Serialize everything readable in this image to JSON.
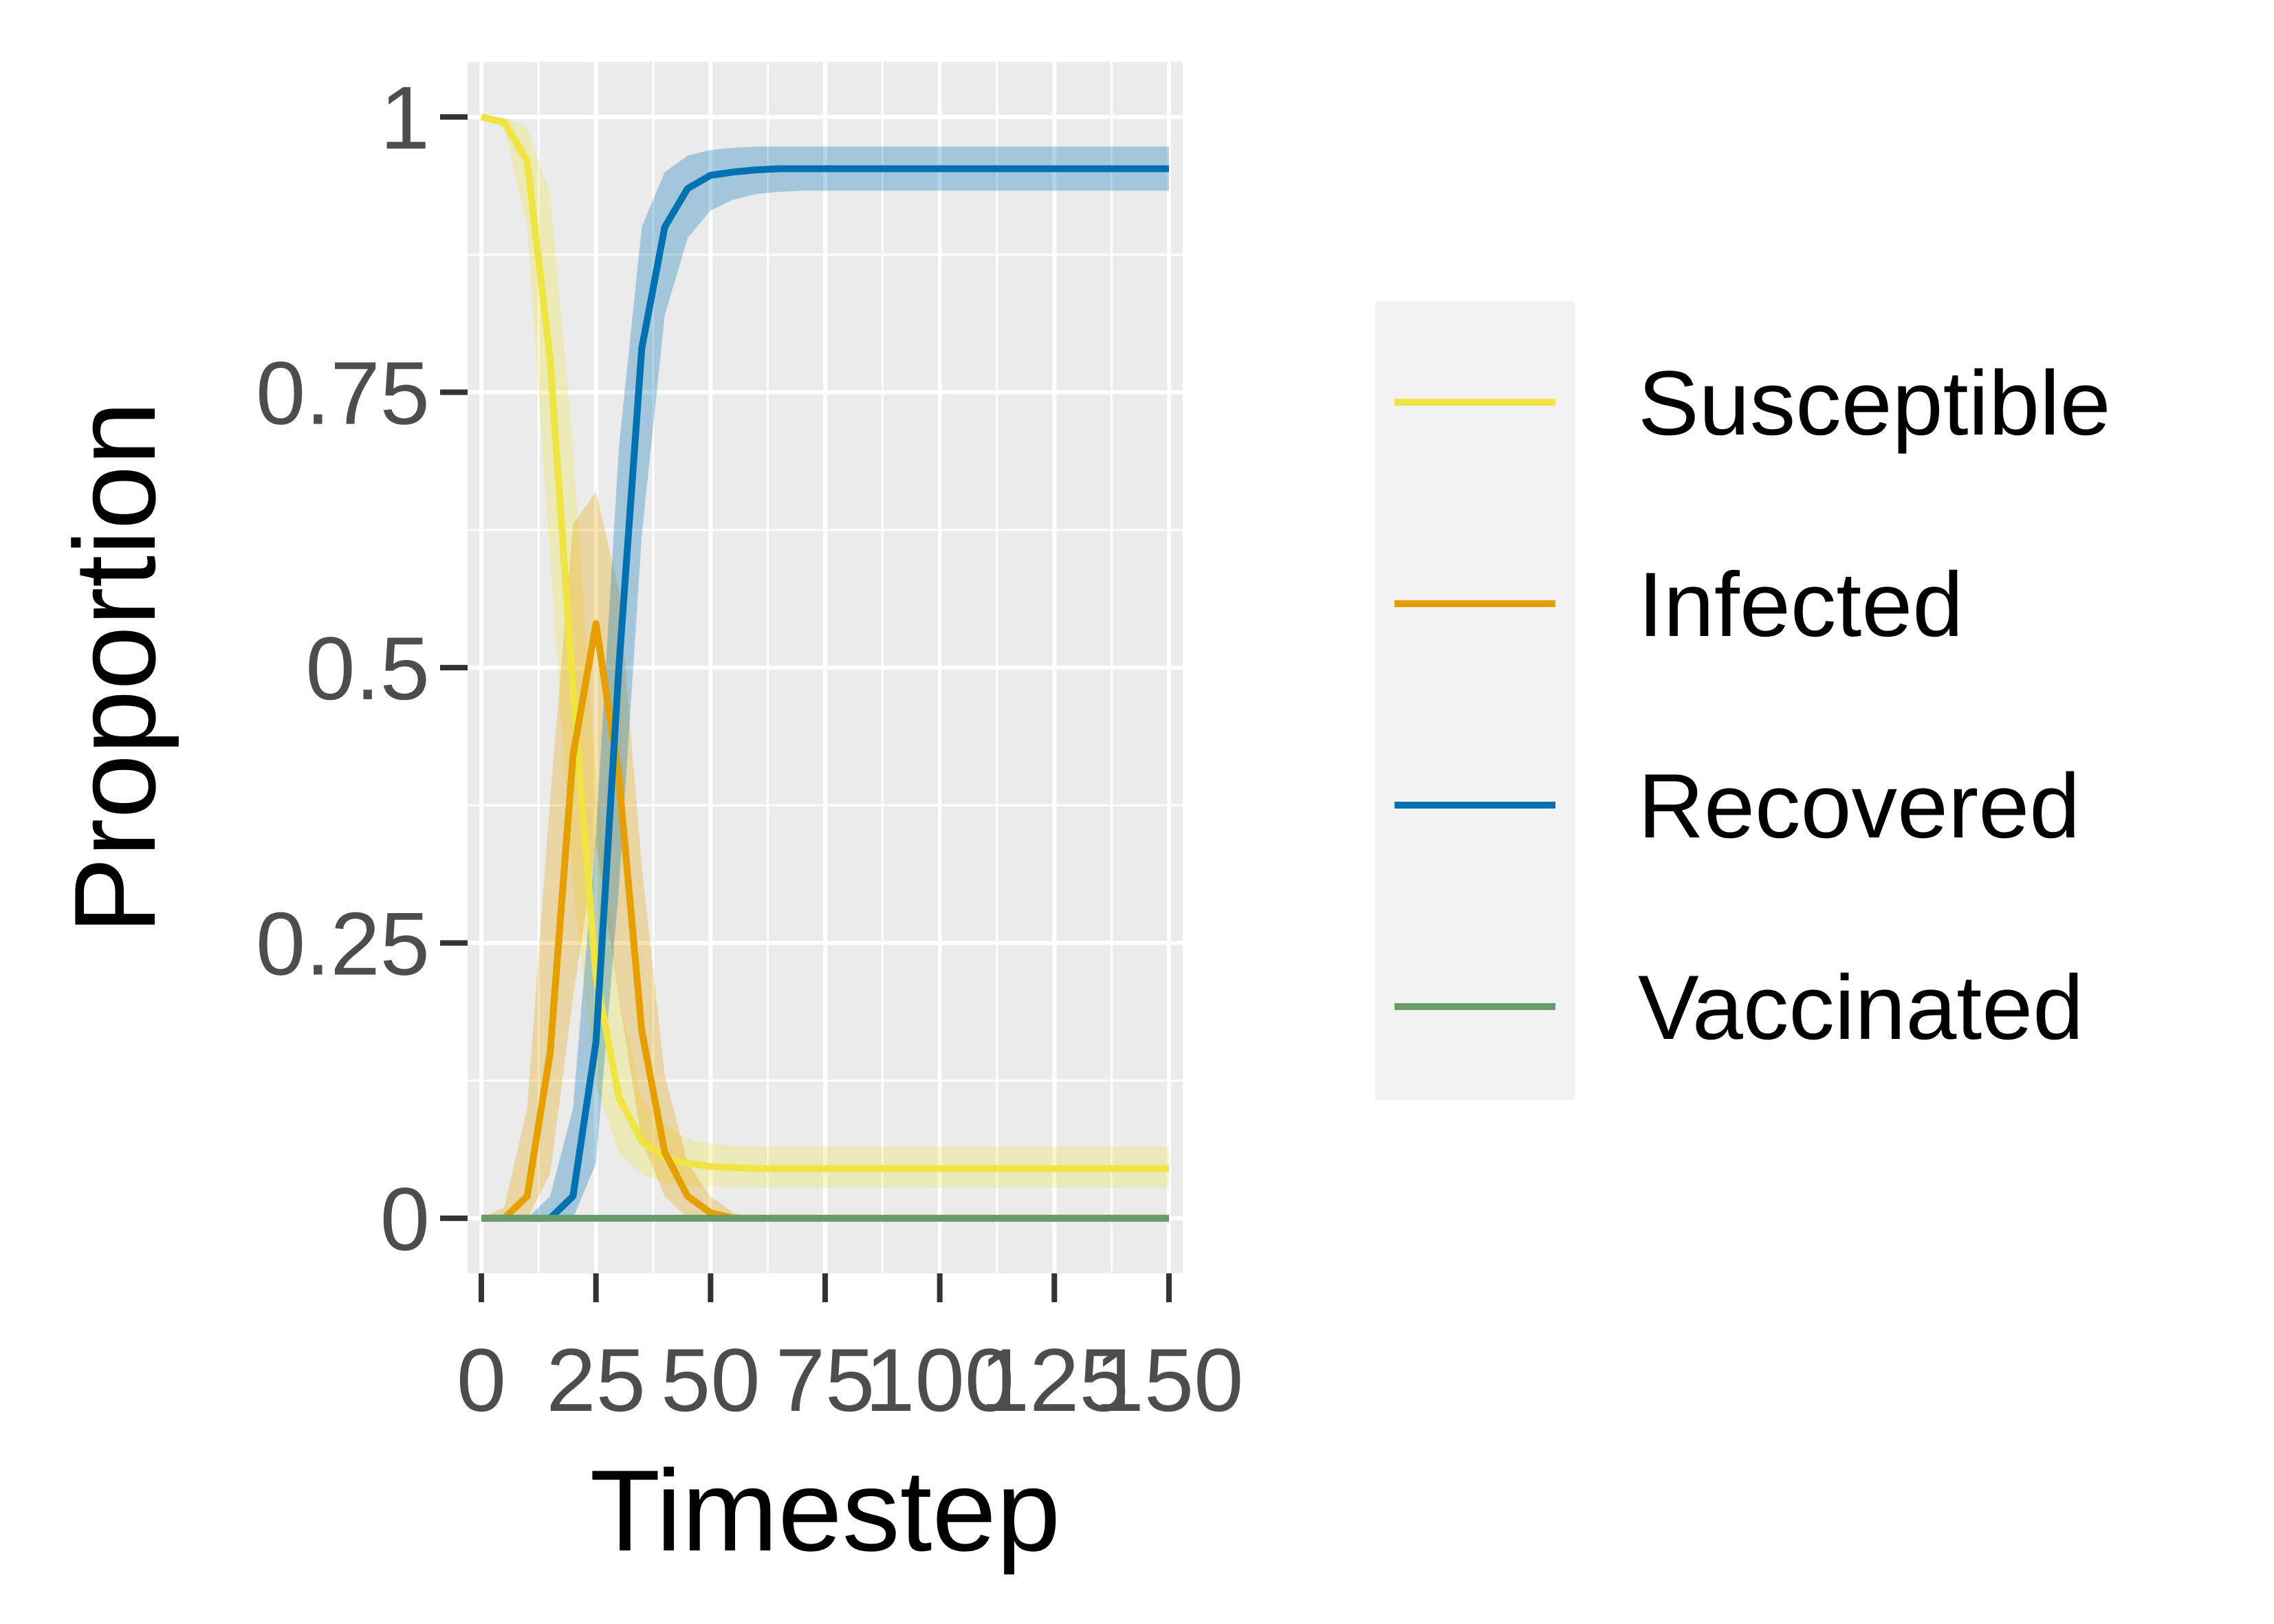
{
  "chart_data": {
    "type": "line",
    "title": "",
    "xlabel": "Timestep",
    "ylabel": "Proportion",
    "xlim": [
      -3,
      153
    ],
    "ylim": [
      -0.05,
      1.05
    ],
    "x_ticks": [
      0,
      25,
      50,
      75,
      100,
      125,
      150
    ],
    "x_tick_labels": [
      "0",
      "25",
      "50",
      "75",
      "100",
      "125",
      "150"
    ],
    "y_ticks": [
      0,
      0.25,
      0.5,
      0.75,
      1
    ],
    "y_tick_labels": [
      "0",
      "0.25",
      "0.5",
      "0.75",
      "1"
    ],
    "grid": true,
    "legend_position": "right",
    "x": [
      0,
      5,
      10,
      15,
      20,
      25,
      30,
      35,
      40,
      45,
      50,
      55,
      60,
      65,
      70,
      75,
      80,
      90,
      100,
      110,
      120,
      130,
      140,
      150
    ],
    "series": [
      {
        "name": "Susceptible",
        "color": "#F0E442",
        "values": [
          1.0,
          0.995,
          0.96,
          0.78,
          0.48,
          0.22,
          0.11,
          0.07,
          0.055,
          0.05,
          0.047,
          0.046,
          0.045,
          0.045,
          0.045,
          0.045,
          0.045,
          0.045,
          0.045,
          0.045,
          0.045,
          0.045,
          0.045,
          0.045
        ],
        "lower": [
          1.0,
          0.99,
          0.9,
          0.6,
          0.3,
          0.12,
          0.06,
          0.04,
          0.032,
          0.03,
          0.029,
          0.028,
          0.028,
          0.028,
          0.028,
          0.028,
          0.028,
          0.028,
          0.028,
          0.028,
          0.028,
          0.028,
          0.028,
          0.028
        ],
        "upper": [
          1.0,
          1.0,
          0.99,
          0.93,
          0.7,
          0.4,
          0.2,
          0.11,
          0.085,
          0.072,
          0.068,
          0.066,
          0.065,
          0.065,
          0.065,
          0.065,
          0.065,
          0.065,
          0.065,
          0.065,
          0.065,
          0.065,
          0.065,
          0.065
        ]
      },
      {
        "name": "Infected",
        "color": "#E69F00",
        "values": [
          0.0,
          0.0,
          0.02,
          0.15,
          0.42,
          0.54,
          0.4,
          0.17,
          0.06,
          0.02,
          0.005,
          0.0,
          0.0,
          0.0,
          0.0,
          0.0,
          0.0,
          0.0,
          0.0,
          0.0,
          0.0,
          0.0,
          0.0,
          0.0
        ],
        "lower": [
          0.0,
          0.0,
          0.0,
          0.04,
          0.2,
          0.34,
          0.2,
          0.07,
          0.02,
          0.0,
          0.0,
          0.0,
          0.0,
          0.0,
          0.0,
          0.0,
          0.0,
          0.0,
          0.0,
          0.0,
          0.0,
          0.0,
          0.0,
          0.0
        ],
        "upper": [
          0.0,
          0.01,
          0.1,
          0.38,
          0.63,
          0.66,
          0.57,
          0.32,
          0.13,
          0.05,
          0.02,
          0.005,
          0.0,
          0.0,
          0.0,
          0.0,
          0.0,
          0.0,
          0.0,
          0.0,
          0.0,
          0.0,
          0.0,
          0.0
        ]
      },
      {
        "name": "Recovered",
        "color": "#0072B2",
        "values": [
          0.0,
          0.0,
          0.0,
          0.0,
          0.02,
          0.16,
          0.5,
          0.79,
          0.9,
          0.935,
          0.947,
          0.95,
          0.952,
          0.953,
          0.953,
          0.953,
          0.953,
          0.953,
          0.953,
          0.953,
          0.953,
          0.953,
          0.953,
          0.953
        ],
        "lower": [
          0.0,
          0.0,
          0.0,
          0.0,
          0.0,
          0.05,
          0.3,
          0.62,
          0.82,
          0.89,
          0.915,
          0.925,
          0.93,
          0.932,
          0.933,
          0.933,
          0.933,
          0.933,
          0.933,
          0.933,
          0.933,
          0.933,
          0.933,
          0.933
        ],
        "upper": [
          0.0,
          0.0,
          0.0,
          0.02,
          0.1,
          0.35,
          0.7,
          0.9,
          0.95,
          0.965,
          0.97,
          0.972,
          0.973,
          0.973,
          0.973,
          0.973,
          0.973,
          0.973,
          0.973,
          0.973,
          0.973,
          0.973,
          0.973,
          0.973
        ]
      },
      {
        "name": "Vaccinated",
        "color": "#6A9A6A",
        "values": [
          0,
          0,
          0,
          0,
          0,
          0,
          0,
          0,
          0,
          0,
          0,
          0,
          0,
          0,
          0,
          0,
          0,
          0,
          0,
          0,
          0,
          0,
          0,
          0
        ]
      }
    ]
  }
}
